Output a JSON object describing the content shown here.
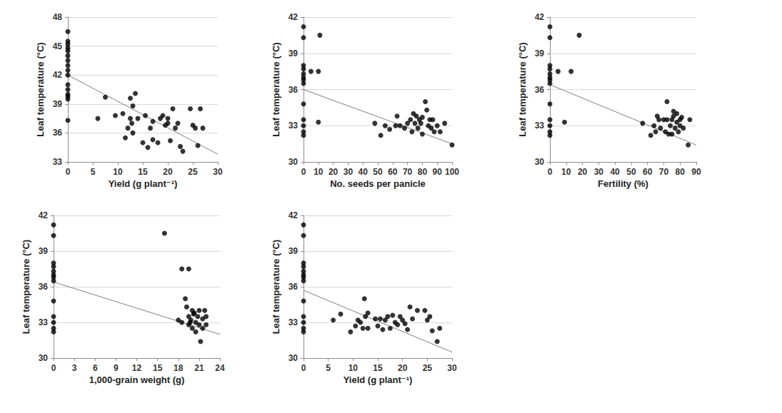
{
  "chart_data": [
    {
      "type": "scatter",
      "x_label": "Yield (g plant⁻¹)",
      "y_label": "Leaf temperature (°C)",
      "x": [
        0,
        0,
        0,
        0,
        0,
        0,
        0,
        0,
        0,
        0,
        0,
        0,
        0,
        0,
        0,
        0,
        6,
        7.5,
        9.5,
        11,
        11.5,
        12,
        12.5,
        12.5,
        13,
        13,
        13.5,
        12.8,
        14,
        15,
        15.5,
        16,
        16.5,
        17,
        17,
        18,
        18.5,
        19,
        19.5,
        20,
        20,
        20.5,
        21,
        21.5,
        22,
        22.5,
        23,
        24.5,
        25,
        25.5,
        26,
        26.5,
        27
      ],
      "values": [
        46.5,
        45.5,
        45.2,
        44.8,
        44.5,
        44,
        43.5,
        43,
        42.5,
        42,
        41,
        40.5,
        40,
        39.8,
        39.5,
        37.3,
        37.5,
        39.7,
        37.8,
        38,
        35.5,
        36.5,
        37.5,
        39.6,
        36,
        38.8,
        40.1,
        37,
        37.5,
        35,
        37.8,
        34.5,
        36.5,
        35.3,
        37.2,
        35,
        37.5,
        37.8,
        36.8,
        37.5,
        37,
        35.2,
        38.5,
        36.5,
        37,
        34.6,
        34.1,
        38.5,
        36.8,
        36.5,
        34.7,
        38.5,
        36.5
      ],
      "trend_line": {
        "x": [
          0,
          30
        ],
        "y": [
          42,
          33.8
        ]
      },
      "xlim": [
        0,
        30
      ],
      "xticks": [
        0,
        5,
        10,
        15,
        20,
        25,
        30
      ],
      "ylim": [
        33,
        48
      ],
      "yticks": [
        33,
        36,
        39,
        42,
        45,
        48
      ],
      "color": "#000000",
      "marker": "circle",
      "grid": true
    },
    {
      "type": "scatter",
      "x_label": "No. seeds per panicle",
      "y_label": "Leaf temperature (°C)",
      "x": [
        0,
        0,
        0,
        0,
        0,
        0,
        0,
        0,
        0,
        0,
        0,
        0,
        0,
        5,
        10,
        10,
        11,
        48,
        52,
        55,
        58,
        62,
        63,
        65,
        68,
        70,
        72,
        73,
        74,
        75,
        76,
        77,
        78,
        79,
        80,
        80,
        82,
        83,
        84,
        85,
        86,
        87,
        88,
        90,
        92,
        95,
        100
      ],
      "values": [
        41.2,
        40.3,
        38,
        37.7,
        37.3,
        37,
        36.8,
        36.5,
        34.8,
        33.5,
        33,
        32.5,
        32.2,
        37.5,
        33.3,
        37.5,
        40.5,
        33.2,
        32.2,
        33,
        32.7,
        33,
        33.8,
        33,
        32.8,
        33.2,
        33.5,
        32.5,
        34,
        33.2,
        33.8,
        32.8,
        33.5,
        33.2,
        33.7,
        32.3,
        35,
        34.3,
        33,
        33.5,
        32.8,
        33.5,
        32.5,
        33,
        32.5,
        33.2,
        31.4
      ],
      "trend_line": {
        "x": [
          0,
          100
        ],
        "y": [
          36,
          31.5
        ]
      },
      "xlim": [
        0,
        100
      ],
      "xticks": [
        0,
        10,
        20,
        30,
        40,
        50,
        60,
        70,
        80,
        90,
        100
      ],
      "ylim": [
        30,
        42
      ],
      "yticks": [
        30,
        33,
        36,
        39,
        42
      ],
      "color": "#000000",
      "marker": "circle",
      "grid": true
    },
    {
      "type": "scatter",
      "x_label": "Fertility (%)",
      "y_label": "Leaf temperature (°C)",
      "x": [
        0,
        0,
        0,
        0,
        0,
        0,
        0,
        0,
        0,
        0,
        0,
        0,
        0,
        5,
        9,
        13,
        18,
        57,
        62,
        64,
        65,
        66,
        67,
        68,
        70,
        71,
        72,
        72,
        73,
        74,
        75,
        75,
        76,
        76,
        77,
        78,
        78,
        79,
        80,
        80,
        81,
        82,
        85,
        86
      ],
      "values": [
        41.2,
        40.3,
        38,
        37.7,
        37.3,
        37,
        36.8,
        36.5,
        34.8,
        33.5,
        33,
        32.5,
        32.2,
        37.5,
        33.3,
        37.5,
        40.5,
        33.2,
        32.2,
        33,
        32.5,
        33.8,
        33.5,
        32.8,
        33.5,
        32.5,
        35,
        33.5,
        32.3,
        33,
        33.5,
        32.3,
        34.2,
        33.8,
        32.8,
        33.3,
        34,
        32.5,
        33.5,
        33,
        33.7,
        32.8,
        31.4,
        33.5
      ],
      "trend_line": {
        "x": [
          0,
          90
        ],
        "y": [
          36.4,
          31.4
        ]
      },
      "xlim": [
        0,
        90
      ],
      "xticks": [
        0,
        10,
        20,
        30,
        40,
        50,
        60,
        70,
        80,
        90
      ],
      "ylim": [
        30,
        42
      ],
      "yticks": [
        30,
        33,
        36,
        39,
        42
      ],
      "color": "#000000",
      "marker": "circle",
      "grid": true
    },
    {
      "type": "scatter",
      "x_label": "1,000-grain weight (g)",
      "y_label": "Leaf temperature (°C)",
      "x": [
        0,
        0,
        0,
        0,
        0,
        0,
        0,
        0,
        0,
        0,
        0,
        0,
        0,
        16,
        18.5,
        19.5,
        18,
        18.5,
        19,
        19.2,
        19.5,
        19.5,
        19.8,
        20,
        20,
        20.2,
        20.5,
        20.5,
        20.8,
        21,
        21,
        21.2,
        21.5,
        21.5,
        22,
        22,
        21.8,
        20.3,
        19.7
      ],
      "values": [
        41.2,
        40.3,
        38,
        37.7,
        37.3,
        37,
        36.8,
        36.5,
        34.8,
        33.5,
        33,
        32.5,
        32.2,
        40.5,
        37.5,
        37.5,
        33.2,
        33,
        35,
        34.3,
        33.5,
        32.8,
        33.2,
        34,
        32.5,
        33.7,
        33,
        32.2,
        33.5,
        32.8,
        34,
        31.4,
        33.3,
        32.5,
        33.5,
        32.8,
        34,
        33.8,
        33
      ],
      "trend_line": {
        "x": [
          0,
          24
        ],
        "y": [
          36.4,
          32
        ]
      },
      "xlim": [
        0,
        24
      ],
      "xticks": [
        0,
        3,
        6,
        9,
        12,
        15,
        18,
        21,
        24
      ],
      "ylim": [
        30,
        42
      ],
      "yticks": [
        30,
        33,
        36,
        39,
        42
      ],
      "color": "#000000",
      "marker": "circle",
      "grid": true
    },
    {
      "type": "scatter",
      "x_label": "Yield (g plant⁻¹)",
      "y_label": "Leaf temperature (°C)",
      "x": [
        0,
        0,
        0,
        0,
        0,
        0,
        0,
        0,
        0,
        0,
        0,
        0,
        0,
        6,
        7.5,
        9.5,
        10.5,
        11,
        11.5,
        12,
        12.3,
        12.5,
        13,
        13,
        14.5,
        15,
        15.5,
        16,
        16.5,
        17,
        17.5,
        18,
        18.5,
        19,
        19.5,
        20,
        20.5,
        21,
        21.5,
        22,
        23,
        24.5,
        25,
        25.5,
        26,
        27,
        27.5
      ],
      "values": [
        41.2,
        40.3,
        38,
        37.7,
        37.3,
        37,
        36.8,
        36.5,
        34.8,
        33.5,
        33,
        32.5,
        32.2,
        33.2,
        33.7,
        32.2,
        32.7,
        33.2,
        33,
        32.5,
        35,
        33.5,
        33.8,
        32.5,
        33.3,
        32.7,
        33.3,
        32.4,
        33.2,
        33.5,
        32.5,
        33.6,
        33,
        32.8,
        33.5,
        33.2,
        32.9,
        32.4,
        34.3,
        33.3,
        34,
        34,
        33.2,
        33.5,
        32.3,
        31.4,
        32.5
      ],
      "trend_line": {
        "x": [
          0,
          30
        ],
        "y": [
          35.7,
          30.5
        ]
      },
      "xlim": [
        0,
        30
      ],
      "xticks": [
        0,
        5,
        10,
        15,
        20,
        25,
        30
      ],
      "ylim": [
        30,
        42
      ],
      "yticks": [
        30,
        33,
        36,
        39,
        42
      ],
      "color": "#000000",
      "marker": "circle",
      "grid": true
    }
  ]
}
